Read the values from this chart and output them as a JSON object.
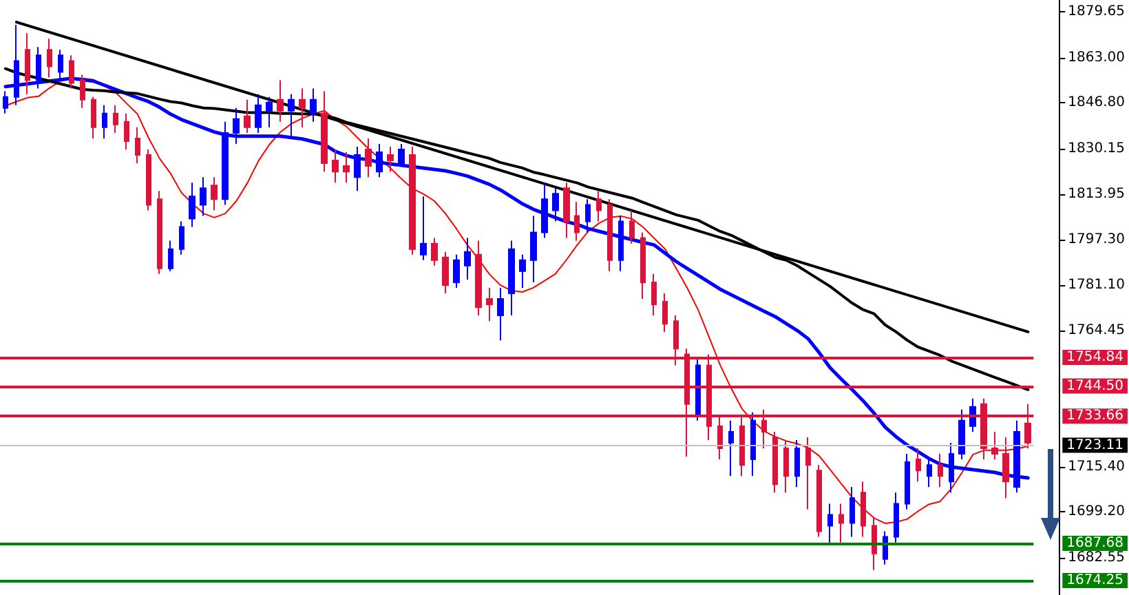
{
  "chart_data": {
    "type": "candlestick",
    "categories": [
      null,
      null,
      null,
      null,
      null,
      null,
      null,
      null,
      null,
      null,
      null,
      null,
      null,
      null,
      null,
      null,
      null,
      null,
      null,
      null,
      null,
      null,
      null,
      null,
      null,
      null,
      null,
      null,
      null,
      null,
      null,
      null,
      null,
      null,
      null,
      null,
      null,
      null,
      null,
      null,
      null,
      null,
      null,
      null,
      null,
      null,
      null,
      null,
      null,
      null,
      null,
      null,
      null,
      null,
      null,
      null,
      null,
      null,
      null,
      null,
      null,
      null,
      null,
      null,
      null,
      null,
      null,
      null,
      null,
      null,
      null,
      null,
      null,
      null,
      null,
      null,
      null,
      null,
      null,
      null,
      null,
      null,
      null,
      null,
      null,
      null,
      null,
      null,
      null,
      null,
      null,
      null,
      null,
      null
    ],
    "ohlc": [
      [
        1845,
        1851,
        1843,
        1849
      ],
      [
        1849,
        1875,
        1846,
        1862
      ],
      [
        1866,
        1872,
        1850,
        1855
      ],
      [
        1855,
        1867,
        1852,
        1864
      ],
      [
        1866,
        1870,
        1856,
        1860
      ],
      [
        1858,
        1866,
        1855,
        1864
      ],
      [
        1862,
        1864,
        1852,
        1854
      ],
      [
        1855,
        1857,
        1845,
        1848
      ],
      [
        1848,
        1849,
        1834,
        1838
      ],
      [
        1838,
        1846,
        1834,
        1843
      ],
      [
        1843,
        1846,
        1836,
        1839
      ],
      [
        1840,
        1843,
        1830,
        1833
      ],
      [
        1834,
        1838,
        1825,
        1828
      ],
      [
        1828,
        1830,
        1808,
        1810
      ],
      [
        1812,
        1815,
        1785,
        1787
      ],
      [
        1787,
        1797,
        1786,
        1794
      ],
      [
        1794,
        1804,
        1792,
        1802
      ],
      [
        1805,
        1818,
        1802,
        1813
      ],
      [
        1810,
        1820,
        1806,
        1816
      ],
      [
        1817,
        1820,
        1808,
        1812
      ],
      [
        1812,
        1840,
        1810,
        1836
      ],
      [
        1836,
        1845,
        1832,
        1841
      ],
      [
        1842,
        1848,
        1836,
        1838
      ],
      [
        1838,
        1850,
        1836,
        1846
      ],
      [
        1844,
        1849,
        1838,
        1847
      ],
      [
        1848,
        1855,
        1840,
        1844
      ],
      [
        1844,
        1850,
        1835,
        1848
      ],
      [
        1848,
        1852,
        1838,
        1845
      ],
      [
        1843,
        1852,
        1840,
        1848
      ],
      [
        1843,
        1851,
        1822,
        1825
      ],
      [
        1826,
        1830,
        1818,
        1822
      ],
      [
        1824,
        1829,
        1818,
        1822
      ],
      [
        1820,
        1831,
        1815,
        1828
      ],
      [
        1830,
        1834,
        1820,
        1824
      ],
      [
        1822,
        1832,
        1820,
        1829
      ],
      [
        1828,
        1831,
        1822,
        1826
      ],
      [
        1825,
        1832,
        1824,
        1830
      ],
      [
        1828,
        1831,
        1792,
        1794
      ],
      [
        1792,
        1813,
        1790,
        1796
      ],
      [
        1796,
        1798,
        1788,
        1790
      ],
      [
        1791,
        1793,
        1778,
        1781
      ],
      [
        1782,
        1792,
        1780,
        1790
      ],
      [
        1788,
        1798,
        1783,
        1793
      ],
      [
        1792,
        1797,
        1770,
        1773
      ],
      [
        1776,
        1780,
        1768,
        1774
      ],
      [
        1770,
        1780,
        1761,
        1776
      ],
      [
        1778,
        1797,
        1770,
        1794
      ],
      [
        1786,
        1792,
        1780,
        1790
      ],
      [
        1790,
        1806,
        1782,
        1800
      ],
      [
        1800,
        1818,
        1798,
        1812
      ],
      [
        1808,
        1816,
        1804,
        1814
      ],
      [
        1816,
        1818,
        1798,
        1804
      ],
      [
        1806,
        1811,
        1797,
        1800
      ],
      [
        1804,
        1812,
        1800,
        1810
      ],
      [
        1812,
        1815,
        1804,
        1808
      ],
      [
        1810,
        1812,
        1786,
        1790
      ],
      [
        1790,
        1806,
        1786,
        1804
      ],
      [
        1804,
        1808,
        1796,
        1798
      ],
      [
        1798,
        1800,
        1776,
        1782
      ],
      [
        1782,
        1785,
        1770,
        1774
      ],
      [
        1775,
        1778,
        1764,
        1767
      ],
      [
        1768,
        1770,
        1752,
        1758
      ],
      [
        1756,
        1758,
        1719,
        1738
      ],
      [
        1734,
        1755,
        1732,
        1752
      ],
      [
        1752,
        1756,
        1725,
        1730
      ],
      [
        1730,
        1734,
        1718,
        1722
      ],
      [
        1724,
        1732,
        1712,
        1728
      ],
      [
        1730,
        1734,
        1712,
        1716
      ],
      [
        1718,
        1735,
        1712,
        1732
      ],
      [
        1732,
        1736,
        1722,
        1728
      ],
      [
        1726,
        1728,
        1706,
        1709
      ],
      [
        1722,
        1725,
        1706,
        1712
      ],
      [
        1712,
        1725,
        1708,
        1722
      ],
      [
        1722,
        1726,
        1700,
        1716
      ],
      [
        1714,
        1716,
        1690,
        1692
      ],
      [
        1694,
        1702,
        1688,
        1698
      ],
      [
        1698,
        1702,
        1688,
        1695
      ],
      [
        1695,
        1708,
        1690,
        1704
      ],
      [
        1706,
        1710,
        1690,
        1694
      ],
      [
        1694,
        1697,
        1678,
        1684
      ],
      [
        1682,
        1692,
        1680,
        1690
      ],
      [
        1690,
        1706,
        1688,
        1702
      ],
      [
        1702,
        1720,
        1700,
        1717
      ],
      [
        1718,
        1722,
        1710,
        1714
      ],
      [
        1712,
        1718,
        1708,
        1716
      ],
      [
        1716,
        1720,
        1708,
        1712
      ],
      [
        1710,
        1724,
        1706,
        1720
      ],
      [
        1720,
        1736,
        1718,
        1732
      ],
      [
        1730,
        1740,
        1728,
        1737
      ],
      [
        1738,
        1740,
        1718,
        1722
      ],
      [
        1722,
        1728,
        1718,
        1720
      ],
      [
        1720,
        1726,
        1704,
        1710
      ],
      [
        1708,
        1732,
        1706,
        1728
      ],
      [
        1731,
        1738,
        1722,
        1724
      ]
    ],
    "colors": [
      "#0000ff",
      "#0000ff",
      "#dc143c",
      "#0000ff",
      "#dc143c",
      "#0000ff",
      "#dc143c",
      "#dc143c",
      "#dc143c",
      "#0000ff",
      "#dc143c",
      "#dc143c",
      "#dc143c",
      "#dc143c",
      "#dc143c",
      "#0000ff",
      "#0000ff",
      "#0000ff",
      "#0000ff",
      "#dc143c",
      "#0000ff",
      "#0000ff",
      "#dc143c",
      "#0000ff",
      "#0000ff",
      "#dc143c",
      "#0000ff",
      "#dc143c",
      "#0000ff",
      "#dc143c",
      "#dc143c",
      "#dc143c",
      "#0000ff",
      "#dc143c",
      "#0000ff",
      "#dc143c",
      "#0000ff",
      "#dc143c",
      "#0000ff",
      "#dc143c",
      "#dc143c",
      "#0000ff",
      "#0000ff",
      "#dc143c",
      "#dc143c",
      "#0000ff",
      "#0000ff",
      "#0000ff",
      "#0000ff",
      "#0000ff",
      "#0000ff",
      "#dc143c",
      "#dc143c",
      "#0000ff",
      "#dc143c",
      "#dc143c",
      "#0000ff",
      "#dc143c",
      "#dc143c",
      "#dc143c",
      "#dc143c",
      "#dc143c",
      "#dc143c",
      "#0000ff",
      "#dc143c",
      "#dc143c",
      "#0000ff",
      "#dc143c",
      "#0000ff",
      "#dc143c",
      "#dc143c",
      "#dc143c",
      "#0000ff",
      "#dc143c",
      "#dc143c",
      "#0000ff",
      "#dc143c",
      "#0000ff",
      "#dc143c",
      "#dc143c",
      "#0000ff",
      "#0000ff",
      "#0000ff",
      "#dc143c",
      "#0000ff",
      "#dc143c",
      "#0000ff",
      "#0000ff",
      "#0000ff",
      "#dc143c",
      "#dc143c",
      "#dc143c",
      "#0000ff",
      "#dc143c"
    ],
    "series": [
      {
        "type": "line",
        "color": "#ff0000",
        "values": [
          1845.8,
          1847.3,
          1848.7,
          1849.2,
          1852.2,
          1854.7,
          1855.7,
          1855.7,
          1855.2,
          null,
          1850.7,
          1846.7,
          1842.8,
          1834.3,
          1826.8,
          1821.4,
          1814.4,
          1810.4,
          1806.9,
          1805.4,
          1806.9,
          1811.4,
          1817.9,
          1825.8,
          1831.8,
          1836.3,
          1839.3,
          1841.3,
          1842.8,
          1844.0,
          1840.8,
          1838.3,
          1834.3,
          1830.3,
          1826.8,
          1823.3,
          1819.4,
          1815.9,
          1813.9,
          1811.4,
          1806.9,
          1801.4,
          1795.5,
          1790.5,
          1785.0,
          1781.0,
          1779.0,
          1778.5,
          1780.0,
          1782.5,
          1785.0,
          1790.0,
          1795.5,
          1800.4,
          1803.4,
          1805.4,
          1805.9,
          1804.9,
          1801.9,
          1797.9,
          1794.0,
          1787.0,
          1780.0,
          1772.0,
          1762.1,
          1752.1,
          1743.7,
          1736.2,
          1731.7,
          1728.2,
          1726.2,
          1724.7,
          1723.7,
          1722.2,
          1719.3,
          1714.3,
          1709.3,
          1704.3,
          1700.3,
          1696.8,
          1694.9,
          1695.4,
          1696.4,
          1699.3,
          1701.8,
          1702.8,
          1707.3,
          1713.3,
          1719.8,
          1721.3,
          1721.3,
          1721.3,
          1721.8,
          1722.8
        ]
      },
      {
        "type": "line",
        "color": "#0000ff",
        "values": [
          1852.7,
          1853.2,
          1853.7,
          1854.2,
          1854.7,
          1855.2,
          1855.7,
          1855.2,
          1854.7,
          1853.2,
          1851.7,
          1850.2,
          1848.7,
          1847.3,
          1845.3,
          1842.8,
          1840.8,
          1839.3,
          1837.8,
          1836.3,
          1835.3,
          1834.8,
          1834.8,
          1834.8,
          1834.8,
          1834.8,
          1834.3,
          1833.8,
          1832.8,
          1831.8,
          1829.3,
          1827.8,
          1826.8,
          1826.3,
          1825.3,
          1824.8,
          1824.3,
          1823.8,
          1823.3,
          1822.8,
          1822.3,
          1821.4,
          1820.4,
          1818.9,
          1817.4,
          1815.4,
          1812.9,
          1810.4,
          1808.4,
          1806.9,
          1805.4,
          1803.9,
          1802.9,
          1801.4,
          1800.4,
          1799.4,
          1798.4,
          1797.4,
          1796.4,
          1795.5,
          1792.5,
          1789.5,
          1787.0,
          1784.5,
          1782.0,
          1779.5,
          1777.5,
          1775.5,
          1773.5,
          1771.5,
          1769.6,
          1767.1,
          1764.6,
          1761.6,
          1756.6,
          1751.1,
          1747.1,
          1743.2,
          1739.2,
          1734.7,
          1729.7,
          1726.2,
          1723.2,
          1720.8,
          1718.3,
          1716.3,
          1715.3,
          1714.8,
          1714.3,
          1713.8,
          1713.3,
          1712.3,
          1711.8,
          1711.3
        ]
      },
      {
        "type": "line",
        "color": "#000000",
        "values": [
          1859.2,
          1857.7,
          1856.7,
          1855.7,
          1854.7,
          1853.7,
          1852.7,
          1851.7,
          1851.4,
          1851.2,
          1850.7,
          1850.5,
          1850.2,
          1849.2,
          1848.2,
          1847.3,
          1846.8,
          1845.8,
          1845.0,
          1844.8,
          1844.3,
          1843.8,
          1843.3,
          1843.3,
          1843.3,
          1843.0,
          1843.0,
          1842.8,
          1842.8,
          1842.3,
          1841.3,
          1839.8,
          1838.8,
          1837.8,
          1836.8,
          1835.8,
          1834.8,
          1833.8,
          1832.8,
          1831.8,
          1830.8,
          1829.8,
          1828.8,
          1827.8,
          1826.8,
          1825.3,
          1824.3,
          1823.3,
          1821.8,
          1820.9,
          1819.9,
          1818.9,
          1817.9,
          1816.4,
          1815.4,
          1814.4,
          1813.4,
          1812.4,
          1810.9,
          1809.4,
          1807.9,
          1806.4,
          1805.4,
          1804.4,
          1802.4,
          1800.4,
          1799.0,
          1797.0,
          1795.0,
          1793.0,
          1791.0,
          1790.0,
          1788.0,
          1785.5,
          1783.0,
          1780.5,
          1777.5,
          1774.5,
          1772.1,
          1770.6,
          1766.6,
          1764.1,
          1761.1,
          1758.6,
          1757.1,
          1755.6,
          1753.6,
          1752.1,
          1750.6,
          1749.1,
          1747.6,
          1746.2,
          1744.7,
          1743.2
        ]
      },
      {
        "type": "line",
        "color": "#000000",
        "values": [
          null,
          1876,
          null,
          null,
          null,
          null,
          null,
          null,
          null,
          null,
          null,
          null,
          null,
          null,
          null,
          null,
          null,
          null,
          null,
          null,
          null,
          null,
          null,
          null,
          null,
          null,
          null,
          null,
          null,
          null,
          null,
          null,
          null,
          null,
          null,
          null,
          null,
          null,
          null,
          null,
          null,
          null,
          null,
          null,
          null,
          null,
          null,
          null,
          null,
          null,
          null,
          null,
          null,
          null,
          null,
          null,
          null,
          null,
          null,
          null,
          null,
          null,
          null,
          null,
          null,
          null,
          null,
          null,
          null,
          null,
          null,
          null,
          null,
          null,
          null,
          null,
          null,
          null,
          null,
          null,
          null,
          null,
          null,
          null,
          null,
          null,
          null,
          null,
          null,
          null,
          null,
          null,
          null,
          1764.1
        ]
      }
    ],
    "ref_lines": [
      {
        "axis": "y",
        "value": 1754.84,
        "label": "1754.84",
        "color": "#dc143c"
      },
      {
        "axis": "y",
        "value": 1744.5,
        "label": "1744.50",
        "color": "#dc143c"
      },
      {
        "axis": "y",
        "value": 1733.66,
        "label": "1733.66",
        "color": "#dc143c"
      },
      {
        "axis": "y",
        "value": 1723.11,
        "label": "1723.11",
        "color": "#c0c0c0"
      },
      {
        "axis": "y",
        "value": 1687.68,
        "label": "1687.68",
        "color": "#008000"
      },
      {
        "axis": "y",
        "value": 1674.25,
        "label": "1674.25",
        "color": "#008000"
      }
    ],
    "ylim": [
      1669,
      1884
    ],
    "yticks": [
      1879.65,
      {
        "value": 1863,
        "label": "1863.00"
      },
      {
        "value": 1846.8,
        "label": "1846.80"
      },
      1830.15,
      1813.95,
      {
        "value": 1797.3,
        "label": "1797.30"
      },
      {
        "value": 1781.1,
        "label": "1781.10"
      },
      1764.45,
      {
        "value": 1715.4,
        "label": "1715.40"
      },
      {
        "value": 1699.2,
        "label": "1699.20"
      },
      1682.55
    ],
    "tick_labels": "y",
    "grid": false
  }
}
